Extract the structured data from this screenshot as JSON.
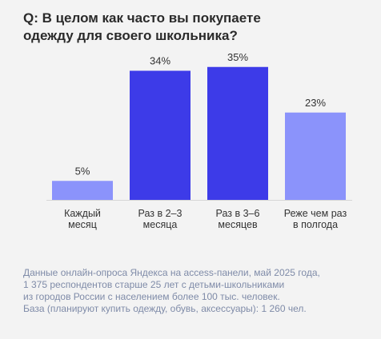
{
  "title_lines": [
    "Q: В целом как часто вы покупаете",
    "одежду для своего школьника?"
  ],
  "chart_data": {
    "type": "bar",
    "categories": [
      [
        "Каждый",
        "месяц"
      ],
      [
        "Раз в 2–3",
        "месяца"
      ],
      [
        "Раз в 3–6",
        "месяцев"
      ],
      [
        "Реже чем раз",
        "в полгода"
      ]
    ],
    "values": [
      5,
      34,
      35,
      23
    ],
    "value_labels": [
      "5%",
      "34%",
      "35%",
      "23%"
    ],
    "ylim": [
      0,
      40
    ],
    "colors": [
      "#8b93fb",
      "#3d3be8",
      "#3d3be8",
      "#8b93fb"
    ],
    "axis_color": "#d6d6d6"
  },
  "note_lines": [
    "Данные онлайн-опроса Яндекса на access-панели, май 2025 года,",
    "1 375 респондентов старше 25 лет с детьми-школьниками",
    "из городов России с населением более 100 тыс. человек.",
    "База (планируют купить одежду, обувь, аксессуары): 1 260 чел."
  ]
}
